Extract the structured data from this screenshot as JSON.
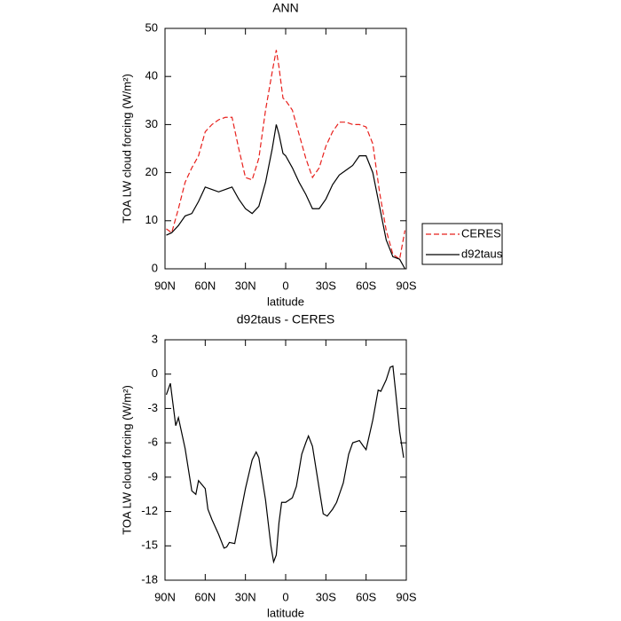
{
  "chart_data": [
    {
      "type": "line",
      "title": "ANN",
      "x_label": "latitude",
      "y_label": "TOA LW cloud forcing (W/m²)",
      "x": [
        89,
        85,
        80,
        75,
        70,
        65,
        60,
        55,
        50,
        45,
        40,
        35,
        30,
        25,
        20,
        15,
        10,
        7,
        5,
        2,
        0,
        -5,
        -10,
        -15,
        -20,
        -25,
        -30,
        -35,
        -40,
        -45,
        -50,
        -55,
        -60,
        -65,
        -70,
        -75,
        -80,
        -85,
        -89
      ],
      "series": [
        {
          "name": "CERES",
          "color": "#e8201c",
          "dashed": true,
          "values": [
            8.3,
            7.5,
            12.5,
            18,
            21,
            23.5,
            28.5,
            30,
            31,
            31.5,
            31.5,
            25,
            19,
            18.5,
            23,
            33,
            41,
            45.5,
            42,
            35.5,
            35,
            33,
            28,
            23,
            19,
            21,
            25.5,
            28.5,
            30.5,
            30.5,
            30,
            30,
            29.5,
            26,
            16,
            8,
            3,
            2,
            8
          ]
        },
        {
          "name": "d92taus",
          "color": "#000000",
          "dashed": false,
          "values": [
            7,
            7.5,
            9,
            11,
            11.5,
            14,
            17,
            16.5,
            16,
            16.5,
            17,
            14.5,
            12.5,
            11.5,
            13,
            18,
            25,
            30,
            28,
            24,
            23.5,
            21,
            18,
            15.5,
            12.5,
            12.5,
            14.5,
            17.5,
            19.5,
            20.5,
            21.5,
            23.5,
            23.5,
            20,
            13,
            6,
            2.5,
            2,
            0
          ]
        }
      ],
      "xlim": [
        90,
        -90
      ],
      "xticks": [
        {
          "value": 90,
          "label": "90N"
        },
        {
          "value": 60,
          "label": "60N"
        },
        {
          "value": 30,
          "label": "30N"
        },
        0,
        {
          "value": -30,
          "label": "30S"
        },
        {
          "value": -60,
          "label": "60S"
        },
        {
          "value": -90,
          "label": "90S"
        }
      ],
      "ylim": [
        0,
        50
      ],
      "yticks": [
        0,
        10,
        20,
        30,
        40,
        50
      ],
      "legend": "right"
    },
    {
      "type": "line",
      "title": "d92taus - CERES",
      "x_label": "latitude",
      "y_label": "TOA LW cloud forcing (W/m²)",
      "x": [
        89,
        86,
        82,
        80,
        75,
        70,
        67,
        65,
        60,
        58,
        55,
        50,
        46,
        44,
        42,
        38,
        35,
        30,
        25,
        22,
        20,
        15,
        11,
        9,
        7,
        5,
        3,
        0,
        -5,
        -8,
        -12,
        -15,
        -17,
        -20,
        -25,
        -28,
        -31,
        -35,
        -38,
        -43,
        -47,
        -50,
        -55,
        -58,
        -60,
        -65,
        -69,
        -71,
        -75,
        -78,
        -80,
        -82,
        -85,
        -88
      ],
      "values": [
        -1.8,
        -0.8,
        -4.5,
        -3.8,
        -6.5,
        -10.2,
        -10.5,
        -9.3,
        -10,
        -11.8,
        -12.7,
        -14,
        -15.2,
        -15.1,
        -14.7,
        -14.8,
        -13,
        -10,
        -7.5,
        -6.8,
        -7.3,
        -11,
        -15,
        -16.4,
        -15.8,
        -13,
        -11.2,
        -11.2,
        -10.8,
        -9.8,
        -7,
        -6,
        -5.4,
        -6.3,
        -10,
        -12.2,
        -12.4,
        -11.8,
        -11.2,
        -9.5,
        -7,
        -6,
        -5.8,
        -6.3,
        -6.6,
        -4,
        -1.4,
        -1.5,
        -0.5,
        0.6,
        0.7,
        -1.5,
        -5,
        -7.3
      ],
      "color": "#000000",
      "xlim": [
        90,
        -90
      ],
      "xticks": [
        {
          "value": 90,
          "label": "90N"
        },
        {
          "value": 60,
          "label": "60N"
        },
        {
          "value": 30,
          "label": "30N"
        },
        0,
        {
          "value": -30,
          "label": "30S"
        },
        {
          "value": -60,
          "label": "60S"
        },
        {
          "value": -90,
          "label": "90S"
        }
      ],
      "ylim": [
        -18,
        3
      ],
      "yticks": [
        -18,
        -15,
        -12,
        -9,
        -6,
        -3,
        0,
        3
      ]
    }
  ]
}
